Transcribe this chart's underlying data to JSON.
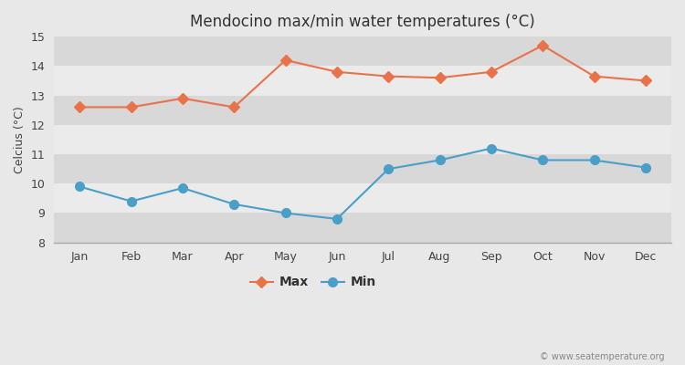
{
  "title": "Mendocino max/min water temperatures (°C)",
  "ylabel": "Celcius (°C)",
  "months": [
    "Jan",
    "Feb",
    "Mar",
    "Apr",
    "May",
    "Jun",
    "Jul",
    "Aug",
    "Sep",
    "Oct",
    "Nov",
    "Dec"
  ],
  "max_temps": [
    12.6,
    12.6,
    12.9,
    12.6,
    14.2,
    13.8,
    13.65,
    13.6,
    13.8,
    14.7,
    13.65,
    13.5
  ],
  "min_temps": [
    9.9,
    9.4,
    9.85,
    9.3,
    9.0,
    8.8,
    10.5,
    10.8,
    11.2,
    10.8,
    10.8,
    10.55
  ],
  "max_color": "#e8724a",
  "min_color": "#4a9fc8",
  "fig_bg_color": "#e8e8e8",
  "band_light": "#ebebeb",
  "band_dark": "#d8d8d8",
  "ylim": [
    8,
    15
  ],
  "yticks": [
    8,
    9,
    10,
    11,
    12,
    13,
    14,
    15
  ],
  "watermark": "© www.seatemperature.org",
  "legend_max": "Max",
  "legend_min": "Min",
  "max_marker": "D",
  "min_marker": "o",
  "max_markersize": 6,
  "min_markersize": 7,
  "linewidth": 1.5
}
